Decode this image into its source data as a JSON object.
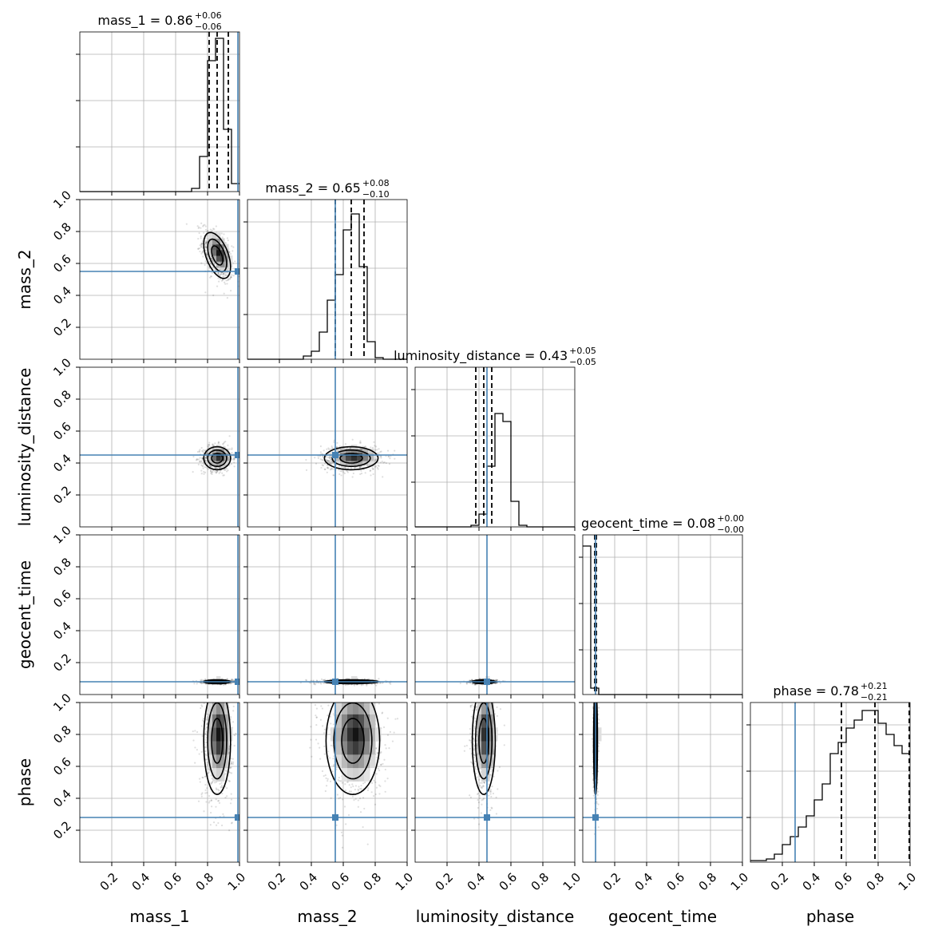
{
  "chart_data": {
    "type": "corner",
    "parameters": [
      "mass_1",
      "mass_2",
      "luminosity_distance",
      "geocent_time",
      "phase"
    ],
    "truths": [
      0.99,
      0.55,
      0.45,
      0.08,
      0.28
    ],
    "truth_color": "#4682b4",
    "range": [
      0,
      1
    ],
    "grid": true,
    "tick_labels": [
      "0.2",
      "0.4",
      "0.6",
      "0.8",
      "1.0"
    ],
    "titles": [
      {
        "label": "mass_1 = 0.86",
        "plus": "+0.06",
        "minus": "−0.06"
      },
      {
        "label": "mass_2 = 0.65",
        "plus": "+0.08",
        "minus": "−0.10"
      },
      {
        "label": "luminosity_distance = 0.43",
        "plus": "+0.05",
        "minus": "−0.05"
      },
      {
        "label": "geocent_time = 0.08",
        "plus": "+0.00",
        "minus": "−0.00"
      },
      {
        "label": "phase = 0.78",
        "plus": "+0.21",
        "minus": "−0.21"
      }
    ],
    "quantiles": [
      [
        0.81,
        0.86,
        0.93
      ],
      [
        0.55,
        0.65,
        0.73
      ],
      [
        0.38,
        0.43,
        0.48
      ],
      [
        0.075,
        0.08,
        0.085
      ],
      [
        0.57,
        0.78,
        0.995
      ]
    ],
    "histograms": [
      {
        "bin_width": 0.05,
        "start": 0.0,
        "counts": [
          0,
          0,
          0,
          0,
          0,
          0,
          0,
          0,
          0,
          0,
          0,
          0,
          0,
          0,
          0.02,
          0.22,
          0.82,
          0.96,
          0.39,
          0.05
        ]
      },
      {
        "bin_width": 0.05,
        "start": 0.0,
        "counts": [
          0,
          0,
          0,
          0,
          0,
          0,
          0,
          0.02,
          0.05,
          0.17,
          0.37,
          0.53,
          0.81,
          0.91,
          0.58,
          0.11,
          0.01,
          0,
          0,
          0
        ]
      },
      {
        "bin_width": 0.05,
        "start": 0.0,
        "counts": [
          0,
          0,
          0,
          0,
          0,
          0,
          0,
          0.01,
          0.08,
          0.38,
          0.71,
          0.66,
          0.16,
          0.01,
          0,
          0,
          0,
          0,
          0,
          0
        ]
      },
      {
        "bin_width": 0.05,
        "start": 0.0,
        "counts": [
          0.93,
          0.04,
          0,
          0,
          0,
          0,
          0,
          0,
          0,
          0,
          0,
          0,
          0,
          0,
          0,
          0,
          0,
          0,
          0,
          0
        ]
      },
      {
        "bin_width": 0.05,
        "start": 0.0,
        "counts": [
          0.01,
          0.01,
          0.02,
          0.05,
          0.11,
          0.16,
          0.22,
          0.29,
          0.39,
          0.49,
          0.68,
          0.75,
          0.84,
          0.89,
          0.95,
          0.95,
          0.87,
          0.8,
          0.73,
          0.68
        ]
      }
    ],
    "pairs": [
      {
        "row": 1,
        "col": 0,
        "mean": [
          0.86,
          0.65
        ],
        "sd": [
          0.035,
          0.06
        ],
        "rho": -0.5
      },
      {
        "row": 2,
        "col": 0,
        "mean": [
          0.86,
          0.43
        ],
        "sd": [
          0.035,
          0.03
        ],
        "rho": 0
      },
      {
        "row": 2,
        "col": 1,
        "mean": [
          0.65,
          0.43
        ],
        "sd": [
          0.07,
          0.03
        ],
        "rho": 0
      },
      {
        "row": 3,
        "col": 0,
        "mean": [
          0.86,
          0.08
        ],
        "sd": [
          0.035,
          0.005
        ],
        "rho": 0
      },
      {
        "row": 3,
        "col": 1,
        "mean": [
          0.65,
          0.08
        ],
        "sd": [
          0.07,
          0.005
        ],
        "rho": 0
      },
      {
        "row": 3,
        "col": 2,
        "mean": [
          0.43,
          0.08
        ],
        "sd": [
          0.03,
          0.005
        ],
        "rho": 0
      },
      {
        "row": 4,
        "col": 0,
        "mean": [
          0.86,
          0.76
        ],
        "sd": [
          0.035,
          0.14
        ],
        "rho": 0
      },
      {
        "row": 4,
        "col": 1,
        "mean": [
          0.66,
          0.76
        ],
        "sd": [
          0.07,
          0.14
        ],
        "rho": 0
      },
      {
        "row": 4,
        "col": 2,
        "mean": [
          0.43,
          0.76
        ],
        "sd": [
          0.03,
          0.14
        ],
        "rho": 0
      },
      {
        "row": 4,
        "col": 3,
        "mean": [
          0.08,
          0.76
        ],
        "sd": [
          0.005,
          0.14
        ],
        "rho": 0
      }
    ]
  }
}
